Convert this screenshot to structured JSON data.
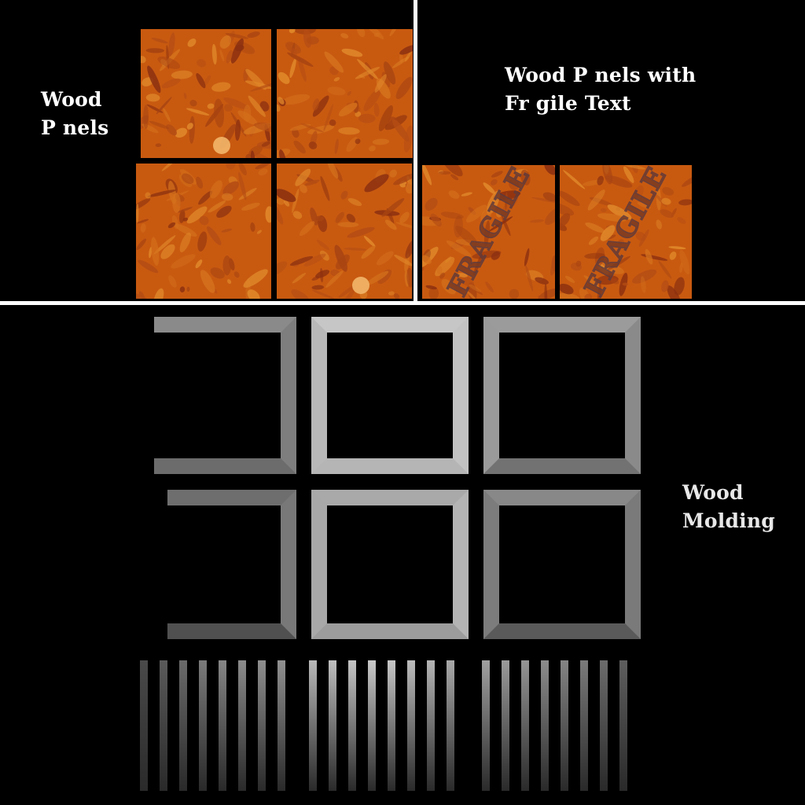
{
  "labels": {
    "wood_panels": [
      "Wood",
      "P  nels"
    ],
    "wood_panels_fragile": [
      "Wood P  nels with",
      "Fr  gile Text"
    ],
    "wood_molding": [
      "Wood",
      "Molding"
    ]
  },
  "panel_overlay_text": "FRAGILE",
  "colors": {
    "background": "#000000",
    "divider": "#ffffff",
    "wood_base": "#c85a10",
    "wood_light": "#e0882a",
    "wood_dark": "#8c3010",
    "label_text": "#ffffff"
  }
}
